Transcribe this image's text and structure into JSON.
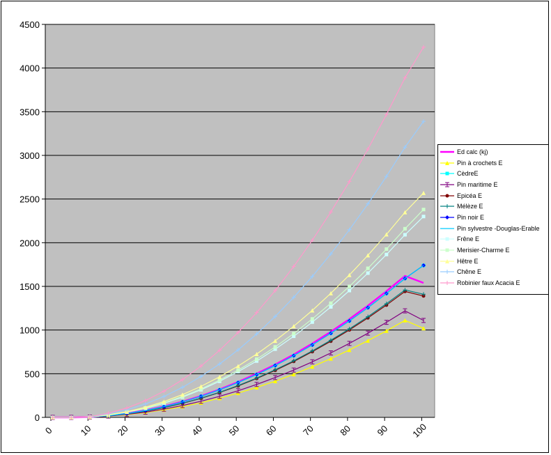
{
  "chart_data": {
    "type": "line",
    "title": "",
    "xlabel": "",
    "ylabel": "",
    "xlim": [
      0,
      105
    ],
    "ylim": [
      0,
      4500
    ],
    "x_ticks": [
      "0",
      "10",
      "20",
      "30",
      "40",
      "50",
      "60",
      "70",
      "80",
      "90",
      "100"
    ],
    "y_ticks": [
      "0",
      "500",
      "1000",
      "1500",
      "2000",
      "2500",
      "3000",
      "3500",
      "4000",
      "4500"
    ],
    "grid": "horizontal",
    "legend_position": "right",
    "plot_background": "#c0c0c0",
    "x": [
      2,
      7,
      12,
      17,
      22,
      27,
      32,
      37,
      42,
      47,
      52,
      57,
      62,
      67,
      72,
      77,
      82,
      87,
      92,
      97,
      102
    ],
    "series": [
      {
        "name": "Ed calc (kj)",
        "color": "#ff00ff",
        "marker": "none",
        "values": [
          0,
          0,
          3,
          20,
          45,
          80,
          125,
          180,
          245,
          320,
          405,
          500,
          605,
          720,
          845,
          980,
          1125,
          1280,
          1445,
          1620,
          1540
        ]
      },
      {
        "name": "Pin à crochets E",
        "color": "#ffff00",
        "marker": "triangle",
        "values": [
          0,
          0,
          3,
          14,
          31,
          55,
          86,
          124,
          168,
          220,
          278,
          343,
          415,
          494,
          580,
          673,
          772,
          879,
          991,
          1111,
          1020
        ]
      },
      {
        "name": "CèdreE",
        "color": "#00ffff",
        "marker": "square",
        "values": [
          0,
          0,
          3,
          20,
          44,
          79,
          123,
          177,
          241,
          315,
          398,
          491,
          594,
          707,
          830,
          963,
          1105,
          1257,
          1419,
          1591,
          1740
        ]
      },
      {
        "name": "Pin maritime E",
        "color": "#800080",
        "marker": "bar",
        "values": [
          0,
          0,
          3,
          15,
          34,
          60,
          94,
          136,
          185,
          241,
          305,
          377,
          456,
          542,
          636,
          738,
          847,
          964,
          1088,
          1220,
          1110
        ]
      },
      {
        "name": "Epicéa E",
        "color": "#800000",
        "marker": "circle",
        "values": [
          0,
          0,
          3,
          18,
          40,
          71,
          111,
          160,
          218,
          285,
          360,
          445,
          538,
          640,
          752,
          872,
          1001,
          1139,
          1286,
          1442,
          1390
        ]
      },
      {
        "name": "Mélèze E",
        "color": "#008080",
        "marker": "plus",
        "values": [
          0,
          0,
          3,
          18,
          41,
          72,
          113,
          162,
          221,
          288,
          365,
          450,
          545,
          648,
          761,
          883,
          1013,
          1153,
          1302,
          1459,
          1410
        ]
      },
      {
        "name": "Pin noir E",
        "color": "#0000ff",
        "marker": "diamond",
        "values": [
          0,
          0,
          3,
          20,
          44,
          79,
          123,
          177,
          241,
          315,
          398,
          491,
          594,
          707,
          830,
          963,
          1105,
          1257,
          1419,
          1591,
          1740
        ]
      },
      {
        "name": "Pin sylvestre -Douglas-Erable",
        "color": "#00ccff",
        "marker": "none",
        "values": [
          0,
          0,
          3,
          20,
          44,
          79,
          123,
          177,
          241,
          315,
          398,
          491,
          594,
          707,
          830,
          963,
          1105,
          1257,
          1419,
          1591,
          1740
        ]
      },
      {
        "name": "Frêne E",
        "color": "#ccffff",
        "marker": "square",
        "values": [
          0,
          0,
          4,
          26,
          58,
          103,
          161,
          232,
          316,
          413,
          523,
          645,
          781,
          929,
          1091,
          1265,
          1452,
          1652,
          1865,
          2091,
          2300
        ]
      },
      {
        "name": "Merisier-Charme E",
        "color": "#ccffcc",
        "marker": "square",
        "values": [
          0,
          0,
          4,
          27,
          60,
          107,
          167,
          240,
          327,
          427,
          540,
          667,
          807,
          960,
          1127,
          1307,
          1500,
          1707,
          1927,
          2160,
          2380
        ]
      },
      {
        "name": "Hêtre E",
        "color": "#ffff99",
        "marker": "triangle",
        "values": [
          0,
          0,
          4,
          29,
          65,
          116,
          181,
          261,
          355,
          464,
          587,
          725,
          877,
          1044,
          1225,
          1421,
          1631,
          1856,
          2095,
          2349,
          2570
        ]
      },
      {
        "name": "Chêne E",
        "color": "#99ccff",
        "marker": "plus",
        "values": [
          0,
          0,
          5,
          38,
          86,
          153,
          239,
          344,
          468,
          611,
          773,
          955,
          1155,
          1375,
          1614,
          1872,
          2149,
          2445,
          2760,
          3094,
          3390
        ]
      },
      {
        "name": "Robinier faux Acacia E",
        "color": "#ff99cc",
        "marker": "plus",
        "values": [
          0,
          0,
          6,
          48,
          108,
          192,
          300,
          432,
          588,
          768,
          972,
          1200,
          1452,
          1728,
          2028,
          2352,
          2700,
          3072,
          3468,
          3888,
          4240
        ]
      }
    ]
  }
}
